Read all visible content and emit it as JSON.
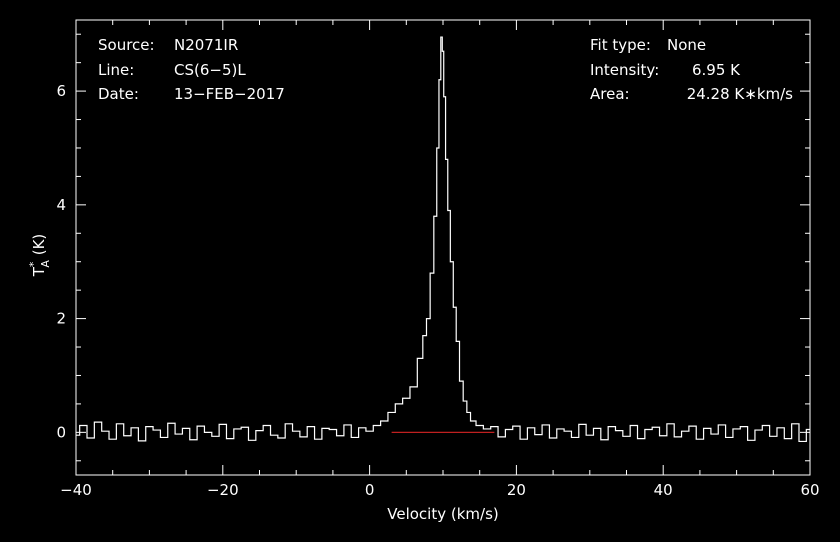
{
  "header": {
    "left": [
      {
        "label": "Source:",
        "value": "N2071IR"
      },
      {
        "label": "Line:",
        "value": "CS(6−5)L"
      },
      {
        "label": "Date:",
        "value": "13−FEB−2017"
      }
    ],
    "right": [
      {
        "label": "Fit type:",
        "value": "None"
      },
      {
        "label": "Intensity:",
        "value": "6.95 K"
      },
      {
        "label": "Area:",
        "value": "24.28 K∗km/s"
      }
    ]
  },
  "colors": {
    "background": "#000000",
    "axes": "#ffffff",
    "spectrum": "#ffffff",
    "baseline": "#c02020"
  },
  "chart_data": {
    "type": "line",
    "title": "",
    "xlabel": "Velocity (km/s)",
    "ylabel_main": "T",
    "ylabel_sup": "*",
    "ylabel_sub": "A",
    "ylabel_unit": " (K)",
    "xlim": [
      -40,
      60
    ],
    "ylim": [
      -0.75,
      7.25
    ],
    "xticks": [
      -40,
      -20,
      0,
      20,
      40,
      60
    ],
    "xtick_labels": [
      "−40",
      "−20",
      "0",
      "20",
      "40",
      "60"
    ],
    "yticks": [
      0,
      2,
      4,
      6
    ],
    "ytick_labels": [
      "0",
      "2",
      "4",
      "6"
    ],
    "grid": false,
    "baseline": {
      "y": 0,
      "x": [
        3,
        17
      ]
    },
    "series": [
      {
        "x": [
          -40,
          -39,
          -38,
          -37,
          -36,
          -35,
          -34,
          -33,
          -32,
          -31,
          -30,
          -29,
          -28,
          -27,
          -26,
          -25,
          -24,
          -23,
          -22,
          -21,
          -20,
          -19,
          -18,
          -17,
          -16,
          -15,
          -14,
          -13,
          -12,
          -11,
          -10,
          -9,
          -8,
          -7,
          -6,
          -5,
          -4,
          -3,
          -2,
          -1,
          0,
          1,
          2,
          3,
          4,
          5,
          6,
          7,
          7.5,
          8,
          8.5,
          9,
          9.3,
          9.6,
          9.8,
          10,
          10.2,
          10.5,
          10.8,
          11.2,
          11.6,
          12,
          12.5,
          13,
          13.5,
          14,
          15,
          16,
          17,
          18,
          19,
          20,
          21,
          22,
          23,
          24,
          25,
          26,
          27,
          28,
          29,
          30,
          31,
          32,
          33,
          34,
          35,
          36,
          37,
          38,
          39,
          40,
          41,
          42,
          43,
          44,
          45,
          46,
          47,
          48,
          49,
          50,
          51,
          52,
          53,
          54,
          55,
          56,
          57,
          58,
          59,
          60
        ],
        "values": [
          -0.05,
          0.12,
          -0.1,
          0.18,
          0.02,
          -0.12,
          0.15,
          -0.06,
          0.08,
          -0.15,
          0.1,
          0.04,
          -0.09,
          0.16,
          -0.03,
          0.07,
          -0.13,
          0.11,
          0.0,
          -0.07,
          0.14,
          -0.11,
          0.06,
          0.09,
          -0.14,
          0.03,
          0.12,
          -0.05,
          -0.1,
          0.15,
          0.02,
          -0.08,
          0.1,
          -0.12,
          0.07,
          0.05,
          -0.06,
          0.13,
          -0.09,
          0.08,
          0.02,
          0.12,
          0.2,
          0.35,
          0.5,
          0.6,
          0.8,
          1.3,
          1.7,
          2.0,
          2.8,
          3.8,
          5.0,
          6.2,
          6.95,
          6.7,
          5.9,
          4.8,
          3.9,
          3.0,
          2.2,
          1.6,
          0.9,
          0.55,
          0.35,
          0.2,
          0.12,
          0.06,
          0.1,
          -0.08,
          0.05,
          0.11,
          -0.12,
          0.08,
          -0.04,
          0.13,
          -0.1,
          0.06,
          0.02,
          -0.09,
          0.14,
          -0.05,
          0.07,
          -0.13,
          0.1,
          0.03,
          -0.07,
          0.12,
          -0.11,
          0.05,
          0.09,
          -0.06,
          0.15,
          -0.08,
          0.02,
          0.11,
          -0.12,
          0.07,
          -0.03,
          0.13,
          -0.09,
          0.06,
          0.1,
          -0.14,
          0.04,
          0.12,
          -0.07,
          0.08,
          -0.11,
          0.15,
          -0.16,
          0.05
        ]
      }
    ]
  }
}
